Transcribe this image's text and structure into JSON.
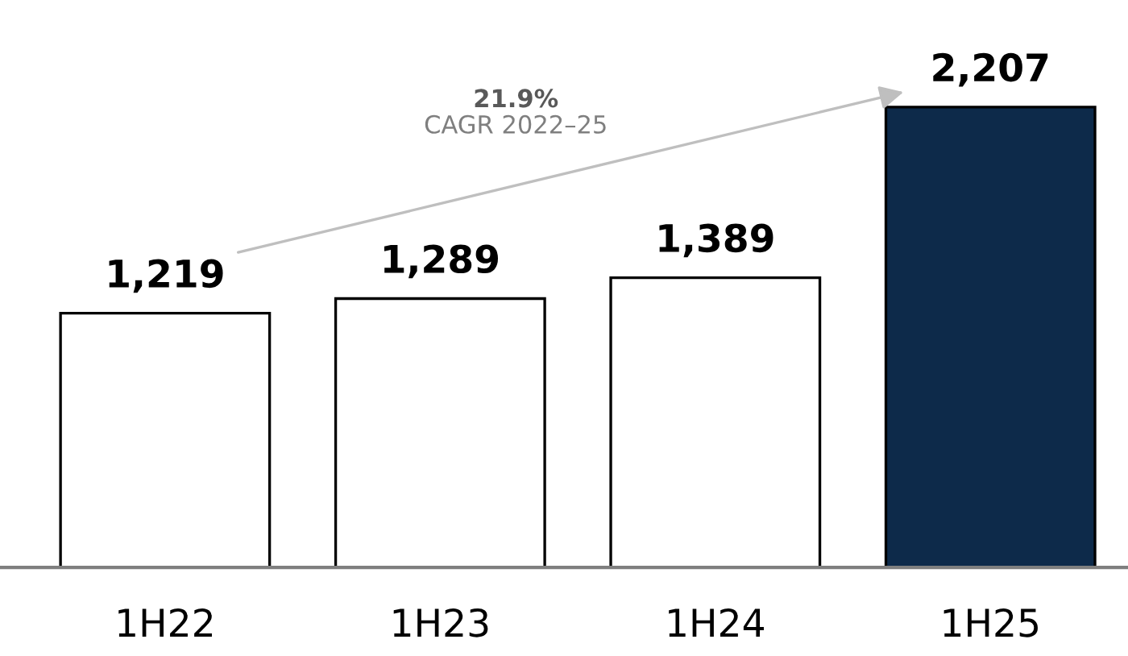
{
  "chart_data": {
    "type": "bar",
    "categories": [
      "1H22",
      "1H23",
      "1H24",
      "1H25"
    ],
    "values": [
      1219,
      1289,
      1389,
      2207
    ],
    "colors": [
      "#ffffff",
      "#ffffff",
      "#ffffff",
      "#0d2a4a"
    ],
    "value_labels": [
      "1,219",
      "1,289",
      "1,389",
      "2,207"
    ],
    "grid": false,
    "legend": false,
    "tick_labels": "x",
    "annotations": [
      "21.9%",
      "CAGR 2022–25"
    ]
  }
}
